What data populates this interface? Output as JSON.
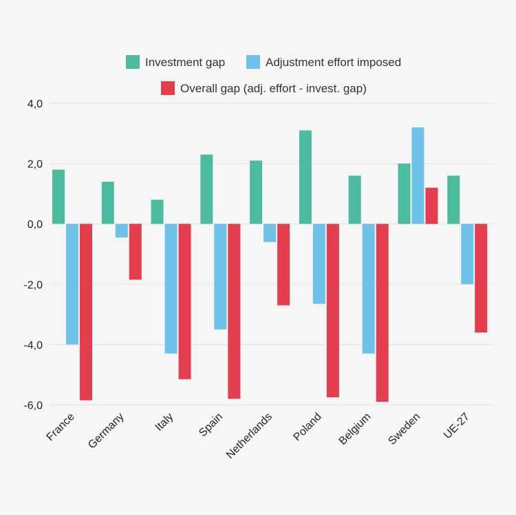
{
  "chart_data": {
    "type": "bar",
    "title": "",
    "xlabel": "",
    "ylabel": "",
    "categories": [
      "France",
      "Germany",
      "Italy",
      "Spain",
      "Netherlands",
      "Poland",
      "Belgium",
      "Sweden",
      "UE-27"
    ],
    "series": [
      {
        "name": "Investment gap",
        "color": "#4dbb9e",
        "values": [
          1.8,
          1.4,
          0.8,
          2.3,
          2.1,
          3.1,
          1.6,
          2.0,
          1.6
        ]
      },
      {
        "name": "Adjustment effort imposed",
        "color": "#6ec1e8",
        "values": [
          -4.0,
          -0.45,
          -4.3,
          -3.5,
          -0.6,
          -2.65,
          -4.3,
          3.2,
          -2.0
        ]
      },
      {
        "name": "Overall gap (adj. effort - invest. gap)",
        "color": "#e33d4e",
        "values": [
          -5.85,
          -1.85,
          -5.15,
          -5.8,
          -2.7,
          -5.75,
          -5.9,
          1.2,
          -3.6
        ]
      }
    ],
    "ylim": [
      -6.0,
      4.0
    ],
    "yticks": [
      4.0,
      2.0,
      0.0,
      -2.0,
      -4.0,
      -6.0
    ],
    "ytick_labels": [
      "4,0",
      "2,0",
      "0,0",
      "-2,0",
      "-4,0",
      "-6,0"
    ],
    "grid": true,
    "legend_position": "top"
  }
}
